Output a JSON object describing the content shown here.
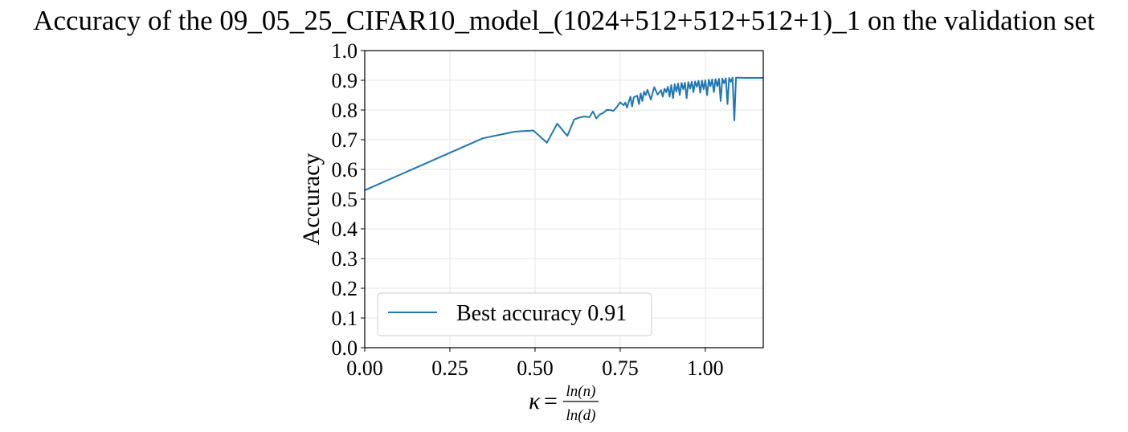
{
  "chart_data": {
    "type": "line",
    "title": "Accuracy of the 09_05_25_CIFAR10_model_(1024+512+512+512+1)_1 on the validation set",
    "ylabel": "Accuracy",
    "xlabel": {
      "symbol": "κ",
      "equals": "=",
      "numerator": "ln(n)",
      "denominator": "ln(d)"
    },
    "xlim": [
      0.0,
      1.17
    ],
    "ylim": [
      0.0,
      1.0
    ],
    "xticks": [
      "0.00",
      "0.25",
      "0.50",
      "0.75",
      "1.00"
    ],
    "xtick_values": [
      0.0,
      0.25,
      0.5,
      0.75,
      1.0
    ],
    "yticks": [
      "0.0",
      "0.1",
      "0.2",
      "0.3",
      "0.4",
      "0.5",
      "0.6",
      "0.7",
      "0.8",
      "0.9",
      "1.0"
    ],
    "ytick_values": [
      0.0,
      0.1,
      0.2,
      0.3,
      0.4,
      0.5,
      0.6,
      0.7,
      0.8,
      0.9,
      1.0
    ],
    "grid": true,
    "legend_position": "lower-left",
    "series": [
      {
        "name": "Best accuracy 0.91",
        "color": "#1f77b4",
        "x": [
          0.0,
          0.347,
          0.44,
          0.495,
          0.535,
          0.565,
          0.595,
          0.615,
          0.63,
          0.645,
          0.66,
          0.67,
          0.68,
          0.69,
          0.7,
          0.71,
          0.72,
          0.73,
          0.74,
          0.75,
          0.76,
          0.765,
          0.77,
          0.78,
          0.785,
          0.79,
          0.8,
          0.805,
          0.81,
          0.815,
          0.82,
          0.825,
          0.83,
          0.84,
          0.85,
          0.86,
          0.87,
          0.875,
          0.88,
          0.885,
          0.89,
          0.895,
          0.9,
          0.905,
          0.91,
          0.915,
          0.92,
          0.925,
          0.93,
          0.935,
          0.94,
          0.945,
          0.95,
          0.955,
          0.96,
          0.965,
          0.97,
          0.975,
          0.98,
          0.985,
          0.99,
          0.995,
          1.0,
          1.005,
          1.01,
          1.015,
          1.02,
          1.025,
          1.03,
          1.035,
          1.04,
          1.045,
          1.05,
          1.055,
          1.06,
          1.065,
          1.07,
          1.075,
          1.08,
          1.085,
          1.09,
          1.1,
          1.12,
          1.14,
          1.17
        ],
        "y": [
          0.53,
          0.705,
          0.727,
          0.731,
          0.69,
          0.754,
          0.713,
          0.768,
          0.775,
          0.778,
          0.776,
          0.795,
          0.772,
          0.785,
          0.79,
          0.8,
          0.8,
          0.797,
          0.81,
          0.826,
          0.816,
          0.825,
          0.808,
          0.845,
          0.812,
          0.843,
          0.848,
          0.82,
          0.856,
          0.83,
          0.862,
          0.85,
          0.868,
          0.835,
          0.877,
          0.852,
          0.867,
          0.845,
          0.872,
          0.86,
          0.878,
          0.845,
          0.884,
          0.84,
          0.887,
          0.862,
          0.889,
          0.85,
          0.891,
          0.87,
          0.892,
          0.84,
          0.894,
          0.872,
          0.895,
          0.86,
          0.896,
          0.878,
          0.898,
          0.858,
          0.899,
          0.87,
          0.9,
          0.85,
          0.902,
          0.88,
          0.903,
          0.86,
          0.904,
          0.88,
          0.905,
          0.83,
          0.906,
          0.89,
          0.907,
          0.82,
          0.908,
          0.895,
          0.909,
          0.765,
          0.909,
          0.909,
          0.908,
          0.908,
          0.908
        ]
      }
    ]
  }
}
